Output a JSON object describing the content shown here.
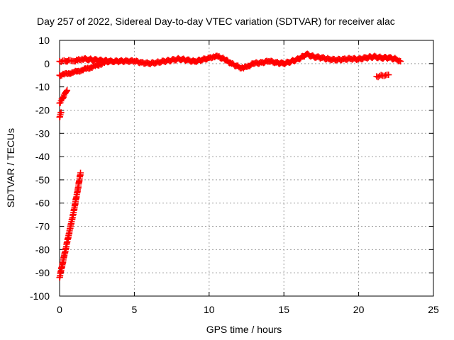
{
  "chart_data": {
    "type": "scatter",
    "title": "Day 257 of 2022, Sidereal Day-to-day VTEC variation (SDTVAR) for receiver alac",
    "xlabel": "GPS time / hours",
    "ylabel": "SDTVAR / TECUs",
    "xlim": [
      0,
      25
    ],
    "ylim": [
      -100,
      10
    ],
    "x_ticks": [
      "0",
      "5",
      "10",
      "15",
      "20",
      "25"
    ],
    "y_ticks": [
      "10",
      "0",
      "-10",
      "-20",
      "-30",
      "-40",
      "-50",
      "-60",
      "-70",
      "-80",
      "-90",
      "-100"
    ],
    "grid": true,
    "legend": "none",
    "marker": "plus",
    "series_color": "#ff0000",
    "series": [
      {
        "x": [
          0.0,
          0.2,
          0.4,
          0.6,
          0.8,
          1.0,
          1.2,
          1.5,
          2.0,
          2.5,
          3.0,
          3.5,
          4.0,
          4.5,
          5.0,
          5.5,
          6.0,
          6.5,
          7.0,
          7.5,
          8.0,
          8.5,
          9.0,
          9.5,
          10.0,
          10.3,
          10.6,
          11.0,
          11.5,
          12.0,
          12.3,
          12.6,
          13.0,
          13.5,
          14.0,
          14.5,
          15.0,
          15.5,
          16.0,
          16.5,
          17.0,
          17.5,
          18.0,
          18.5,
          19.0,
          19.5,
          20.0,
          20.5,
          21.0,
          21.5,
          22.0,
          22.5,
          22.8
        ],
        "y": [
          1.0,
          1.2,
          1.0,
          1.5,
          1.2,
          1.0,
          1.5,
          2.0,
          1.8,
          1.5,
          1.2,
          1.0,
          1.0,
          1.2,
          1.0,
          0.5,
          0.0,
          0.5,
          1.0,
          1.5,
          2.0,
          1.5,
          1.0,
          1.5,
          2.5,
          3.0,
          3.0,
          2.0,
          0.0,
          -1.5,
          -2.0,
          -1.0,
          0.0,
          0.5,
          1.0,
          0.5,
          0.0,
          1.0,
          2.0,
          4.0,
          3.0,
          2.5,
          2.0,
          1.5,
          2.0,
          2.0,
          2.0,
          2.5,
          3.0,
          2.5,
          2.5,
          2.0,
          1.0
        ]
      },
      {
        "x": [
          0.0,
          0.3,
          0.6,
          0.9,
          1.2,
          1.5,
          1.8,
          2.1,
          2.4,
          2.7,
          3.0,
          3.3
        ],
        "y": [
          -5.0,
          -4.6,
          -4.2,
          -3.8,
          -3.3,
          -2.8,
          -2.2,
          -1.6,
          -1.0,
          -0.3,
          0.4,
          1.0
        ]
      },
      {
        "x": [
          0.0,
          0.1,
          0.2,
          0.3,
          0.4,
          0.5
        ],
        "y": [
          -17.0,
          -16.0,
          -15.0,
          -13.5,
          -12.5,
          -11.5
        ]
      },
      {
        "x": [
          0.0,
          0.05,
          0.1
        ],
        "y": [
          -23.0,
          -22.0,
          -21.0
        ]
      },
      {
        "x": [
          0.0,
          0.1,
          0.2,
          0.3,
          0.4,
          0.5,
          0.6,
          0.7,
          0.8,
          0.9,
          1.0,
          1.1,
          1.2,
          1.3,
          1.4
        ],
        "y": [
          -92.0,
          -89.0,
          -86.0,
          -83.0,
          -80.0,
          -77.0,
          -74.0,
          -71.0,
          -68.0,
          -65.0,
          -62.0,
          -58.0,
          -55.0,
          -51.0,
          -47.0
        ]
      },
      {
        "x": [
          21.2,
          21.4,
          21.6,
          21.8,
          22.0
        ],
        "y": [
          -5.5,
          -5.3,
          -5.2,
          -5.0,
          -4.8
        ]
      }
    ]
  }
}
